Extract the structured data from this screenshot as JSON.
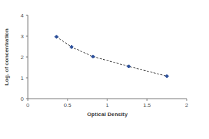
{
  "chart_data": {
    "type": "line",
    "x_label": "Optical Density",
    "y_label": "Log. of concentration",
    "x": [
      0.36,
      0.55,
      0.82,
      1.27,
      1.75
    ],
    "values": [
      2.97,
      2.48,
      2.02,
      1.55,
      1.08
    ],
    "xlim": [
      0,
      2
    ],
    "xticks": [
      0,
      0.5,
      1,
      1.5,
      2
    ],
    "ylim": [
      0,
      4
    ],
    "yticks": [
      0,
      1,
      2,
      3,
      4
    ],
    "grid": false,
    "color": "#2b4f9a",
    "marker": "diamond",
    "line_style": "dashed"
  }
}
